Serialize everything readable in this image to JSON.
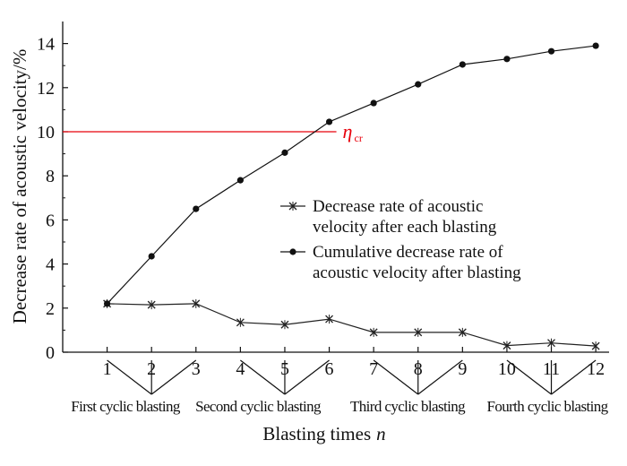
{
  "chart_data": {
    "type": "line",
    "xlabel": "Blasting times",
    "xlabel_var": "n",
    "ylabel": "Decrease rate of acoustic velocity/%",
    "x": [
      1,
      2,
      3,
      4,
      5,
      6,
      7,
      8,
      9,
      10,
      11,
      12
    ],
    "xlim": [
      0,
      12.3
    ],
    "ylim": [
      0,
      15
    ],
    "yticks": [
      0,
      2,
      4,
      6,
      8,
      10,
      12,
      14
    ],
    "series": [
      {
        "name": "Decrease rate of acoustic velocity after each blasting",
        "name_lines": [
          "Decrease rate of acoustic",
          "velocity after each blasting"
        ],
        "marker": "x",
        "color": "#222222",
        "values": [
          2.2,
          2.15,
          2.2,
          1.35,
          1.25,
          1.5,
          0.9,
          0.9,
          0.9,
          0.3,
          0.42,
          0.28
        ]
      },
      {
        "name": "Cumulative decrease rate of acoustic velocity after blasting",
        "name_lines": [
          "Cumulative decrease rate of",
          "acoustic velocity after blasting"
        ],
        "marker": "dot",
        "color": "#111111",
        "values": [
          2.2,
          4.35,
          6.5,
          7.8,
          9.05,
          10.45,
          11.3,
          12.15,
          13.05,
          13.3,
          13.65,
          13.9
        ]
      }
    ],
    "threshold": {
      "value": 10,
      "label": "η",
      "label_sub": "cr",
      "color": "#e8000b"
    },
    "groups": [
      {
        "label": "First cyclic blasting",
        "members": [
          1,
          2,
          3
        ]
      },
      {
        "label": "Second cyclic blasting",
        "members": [
          4,
          5,
          6
        ]
      },
      {
        "label": "Third cyclic blasting",
        "members": [
          7,
          8,
          9
        ]
      },
      {
        "label": "Fourth cyclic blasting",
        "members": [
          10,
          11,
          12
        ]
      }
    ],
    "legend_position": "center-right",
    "grid": false
  }
}
